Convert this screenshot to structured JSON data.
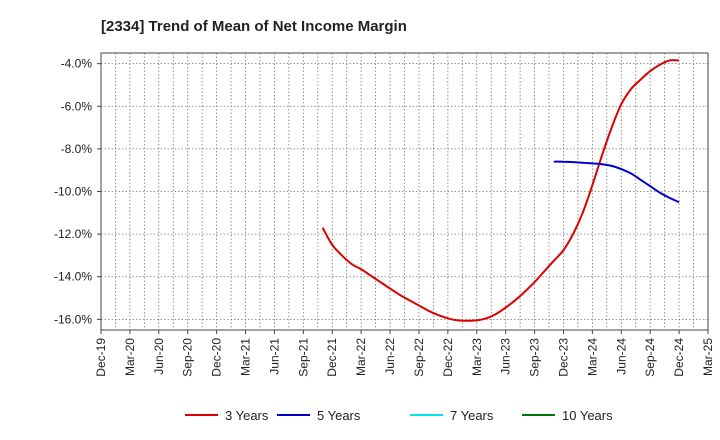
{
  "chart_data": {
    "type": "line",
    "title": "[2334]  Trend of Mean of Net Income Margin",
    "xlabel": "",
    "ylabel": "",
    "x_categories": [
      "Dec-19",
      "Mar-20",
      "Jun-20",
      "Sep-20",
      "Dec-20",
      "Mar-21",
      "Jun-21",
      "Sep-21",
      "Dec-21",
      "Mar-22",
      "Jun-22",
      "Sep-22",
      "Dec-22",
      "Mar-23",
      "Jun-23",
      "Sep-23",
      "Dec-23",
      "Mar-24",
      "Jun-24",
      "Sep-24",
      "Dec-24",
      "Mar-25"
    ],
    "y_ticks": [
      -4.0,
      -6.0,
      -8.0,
      -10.0,
      -12.0,
      -14.0,
      -16.0
    ],
    "y_tick_labels": [
      "-4.0%",
      "-6.0%",
      "-8.0%",
      "-10.0%",
      "-12.0%",
      "-14.0%",
      "-16.0%"
    ],
    "ylim": [
      -16.5,
      -3.5
    ],
    "grid": true,
    "legend_position": "bottom",
    "series": [
      {
        "name": "3 Years",
        "color": "#dd0000",
        "x": [
          "Nov-21",
          "Dec-21",
          "Jan-22",
          "Feb-22",
          "Mar-22",
          "Apr-22",
          "May-22",
          "Jun-22",
          "Jul-22",
          "Aug-22",
          "Sep-22",
          "Oct-22",
          "Nov-22",
          "Dec-22",
          "Jan-23",
          "Feb-23",
          "Mar-23",
          "Apr-23",
          "May-23",
          "Jun-23",
          "Jul-23",
          "Aug-23",
          "Sep-23",
          "Oct-23",
          "Nov-23",
          "Dec-23",
          "Jan-24",
          "Feb-24",
          "Mar-24",
          "Apr-24",
          "May-24",
          "Jun-24",
          "Jul-24",
          "Aug-24",
          "Sep-24",
          "Oct-24",
          "Nov-24",
          "Dec-24"
        ],
        "values": [
          -11.7,
          -12.5,
          -13.0,
          -13.4,
          -13.65,
          -13.95,
          -14.25,
          -14.55,
          -14.85,
          -15.1,
          -15.35,
          -15.6,
          -15.8,
          -15.95,
          -16.05,
          -16.07,
          -16.05,
          -15.95,
          -15.75,
          -15.45,
          -15.1,
          -14.7,
          -14.25,
          -13.75,
          -13.25,
          -12.75,
          -12.0,
          -11.0,
          -9.7,
          -8.3,
          -7.0,
          -5.9,
          -5.2,
          -4.75,
          -4.35,
          -4.05,
          -3.85,
          -3.85
        ]
      },
      {
        "name": "5 Years",
        "color": "#0000cc",
        "x": [
          "Nov-23",
          "Dec-23",
          "Jan-24",
          "Feb-24",
          "Mar-24",
          "Apr-24",
          "May-24",
          "Jun-24",
          "Jul-24",
          "Aug-24",
          "Sep-24",
          "Oct-24",
          "Nov-24",
          "Dec-24"
        ],
        "values": [
          -8.6,
          -8.6,
          -8.62,
          -8.65,
          -8.68,
          -8.72,
          -8.8,
          -8.95,
          -9.15,
          -9.45,
          -9.75,
          -10.05,
          -10.3,
          -10.5
        ]
      },
      {
        "name": "7 Years",
        "color": "#00e5ee",
        "x": [],
        "values": []
      },
      {
        "name": "10 Years",
        "color": "#007700",
        "x": [],
        "values": []
      }
    ]
  }
}
